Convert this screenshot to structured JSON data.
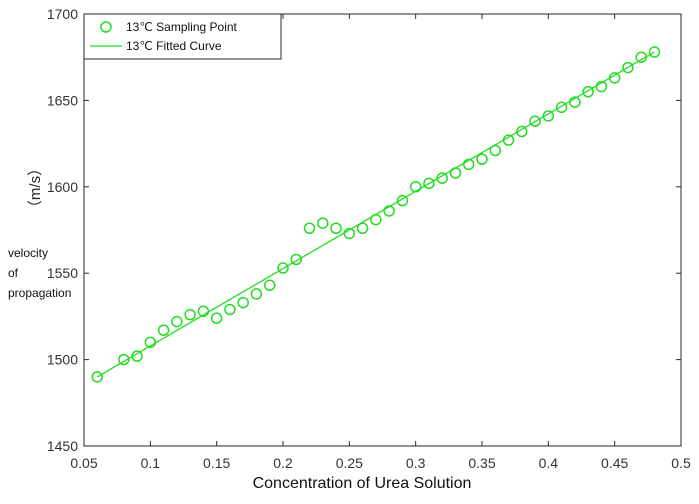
{
  "chart_data": {
    "type": "scatter",
    "xlabel": "Concentration of Urea Solution",
    "ylabel_unit": "（m/s）",
    "ylabel_lines": [
      "velocity",
      "of",
      "propagation"
    ],
    "xlim": [
      0.05,
      0.5
    ],
    "ylim": [
      1450,
      1700
    ],
    "x_ticks": [
      "0.05",
      "0.1",
      "0.15",
      "0.2",
      "0.25",
      "0.3",
      "0.35",
      "0.4",
      "0.45",
      "0.5"
    ],
    "y_ticks": [
      "1450",
      "1500",
      "1550",
      "1600",
      "1650",
      "1700"
    ],
    "grid": false,
    "legend_position": "top-left",
    "legend": [
      {
        "label": "13℃  Sampling Point",
        "marker": "circle"
      },
      {
        "label": "13℃   Fitted Curve",
        "marker": "line"
      }
    ],
    "series": [
      {
        "name": "13℃  Sampling Point",
        "kind": "scatter",
        "color": "#22dd22",
        "points": [
          [
            0.06,
            1490
          ],
          [
            0.08,
            1500
          ],
          [
            0.09,
            1502
          ],
          [
            0.1,
            1510
          ],
          [
            0.11,
            1517
          ],
          [
            0.12,
            1522
          ],
          [
            0.13,
            1526
          ],
          [
            0.14,
            1528
          ],
          [
            0.15,
            1524
          ],
          [
            0.16,
            1529
          ],
          [
            0.17,
            1533
          ],
          [
            0.18,
            1538
          ],
          [
            0.19,
            1543
          ],
          [
            0.2,
            1553
          ],
          [
            0.21,
            1558
          ],
          [
            0.22,
            1576
          ],
          [
            0.23,
            1579
          ],
          [
            0.24,
            1576
          ],
          [
            0.25,
            1573
          ],
          [
            0.26,
            1576
          ],
          [
            0.27,
            1581
          ],
          [
            0.28,
            1586
          ],
          [
            0.29,
            1592
          ],
          [
            0.3,
            1600
          ],
          [
            0.31,
            1602
          ],
          [
            0.32,
            1605
          ],
          [
            0.33,
            1608
          ],
          [
            0.34,
            1613
          ],
          [
            0.35,
            1616
          ],
          [
            0.36,
            1621
          ],
          [
            0.37,
            1627
          ],
          [
            0.38,
            1632
          ],
          [
            0.39,
            1638
          ],
          [
            0.4,
            1641
          ],
          [
            0.41,
            1646
          ],
          [
            0.42,
            1649
          ],
          [
            0.43,
            1655
          ],
          [
            0.44,
            1658
          ],
          [
            0.45,
            1663
          ],
          [
            0.46,
            1669
          ],
          [
            0.47,
            1675
          ],
          [
            0.48,
            1678
          ]
        ]
      },
      {
        "name": "13℃   Fitted Curve",
        "kind": "line",
        "color": "#22dd22",
        "points": [
          [
            0.06,
            1490
          ],
          [
            0.48,
            1678
          ]
        ]
      }
    ]
  }
}
